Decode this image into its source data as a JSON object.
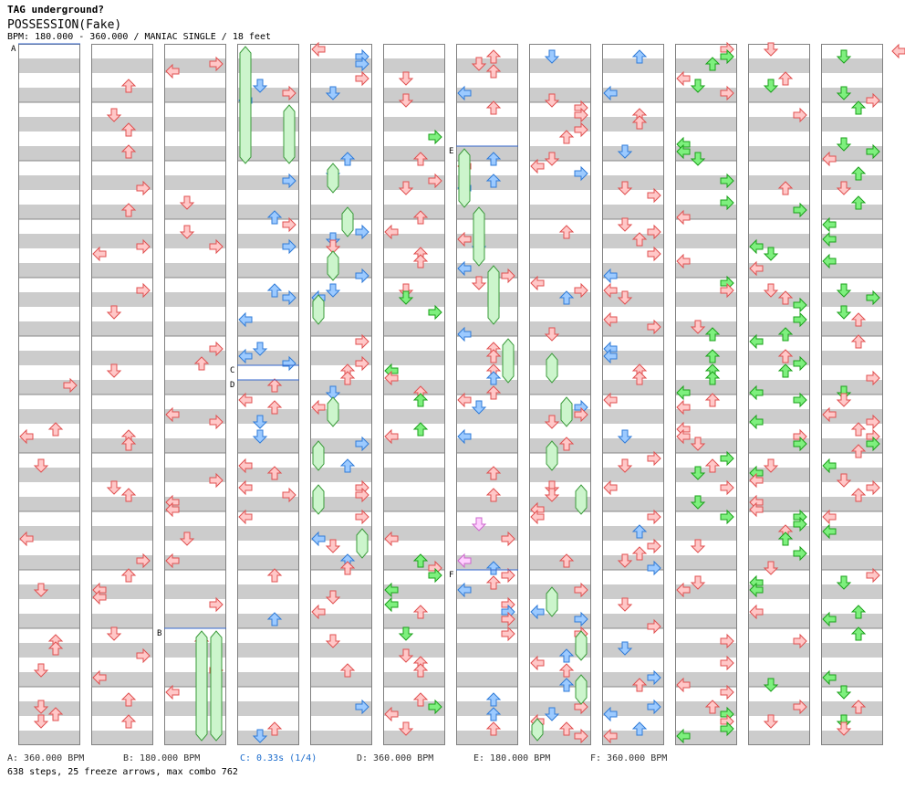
{
  "header": {
    "artist": "TAG underground?",
    "title": "POSSESSION(Fake)",
    "meta": "BPM: 180.000 - 360.000 / MANIAC SINGLE / 18 feet"
  },
  "columns": 12,
  "speed_markers": [
    {
      "label": "A",
      "column": 0,
      "row": 0,
      "color": "#3366cc"
    },
    {
      "label": "B",
      "column": 2,
      "row": 40,
      "color": "#3366cc"
    },
    {
      "label": "C",
      "column": 3,
      "row": 22,
      "color": "#3366cc"
    },
    {
      "label": "D",
      "column": 3,
      "row": 23,
      "color": "#3366cc"
    },
    {
      "label": "E",
      "column": 6,
      "row": 7,
      "color": "#3366cc"
    },
    {
      "label": "F",
      "column": 6,
      "row": 36,
      "color": "#3366cc"
    }
  ],
  "legend": [
    {
      "key": "A",
      "text": "A: 360.000 BPM",
      "color": "#333333"
    },
    {
      "key": "B",
      "text": "B: 180.000 BPM",
      "color": "#333333"
    },
    {
      "key": "C",
      "text": "C: 0.33s (1/4)",
      "color": "#1a6bcc"
    },
    {
      "key": "D",
      "text": "D: 360.000 BPM",
      "color": "#333333"
    },
    {
      "key": "E",
      "text": "E: 180.000 BPM",
      "color": "#333333"
    },
    {
      "key": "F",
      "text": "F: 360.000 BPM",
      "color": "#333333"
    }
  ],
  "stats": "638 steps, 25 freeze arrows, max combo 762",
  "colors": {
    "red_fill": "#ffc8c8",
    "red_stroke": "#e05050",
    "blue_fill": "#9ccaff",
    "blue_stroke": "#2f7bd8",
    "green_fill": "#7ef07e",
    "green_stroke": "#1aa01a",
    "pink_fill": "#ffd0ff",
    "pink_stroke": "#cc66cc",
    "freeze_fill": "#ccf5cc",
    "freeze_stroke": "#3a9a3a",
    "stripe": "#cccccc",
    "border": "#808080"
  },
  "icons": [
    "arrow-left-icon",
    "arrow-down-icon",
    "arrow-up-icon",
    "arrow-right-icon",
    "freeze-arrow-icon"
  ]
}
